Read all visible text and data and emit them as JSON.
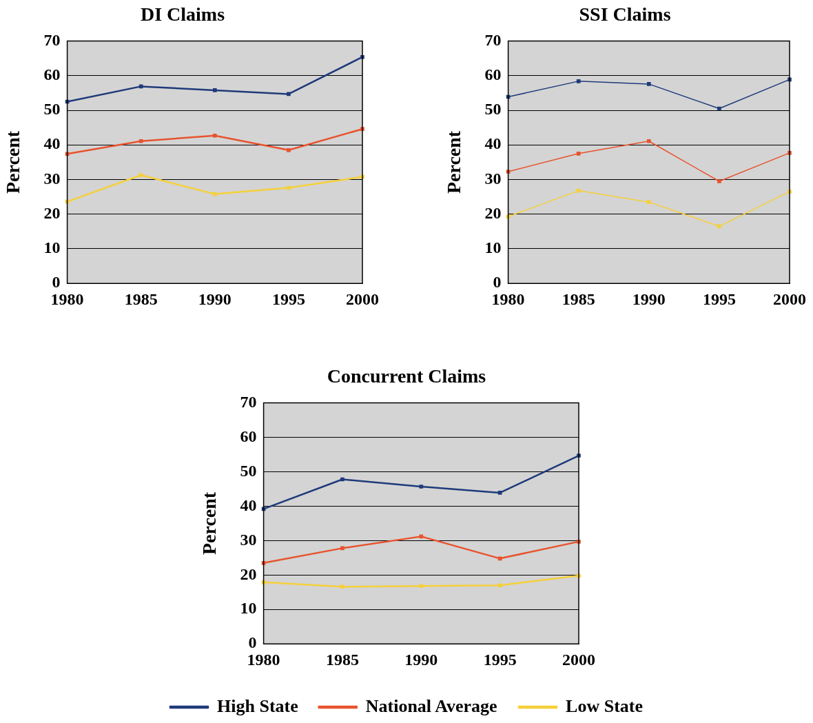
{
  "chart_data": [
    {
      "type": "line",
      "title": "DI Claims",
      "ylabel": "Percent",
      "categories": [
        "1980",
        "1985",
        "1990",
        "1995",
        "2000"
      ],
      "ylim": [
        0,
        70
      ],
      "yticks": [
        0,
        10,
        20,
        30,
        40,
        50,
        60,
        70
      ],
      "grid": "y",
      "marker": "square",
      "line_style": "solid",
      "series": [
        {
          "color": "#1f3a7a",
          "values": [
            52.5,
            56.9,
            55.8,
            54.7,
            65.4
          ]
        },
        {
          "color": "#e8532e",
          "values": [
            37.4,
            41.1,
            42.7,
            38.5,
            44.6
          ]
        },
        {
          "color": "#f5d03a",
          "values": [
            23.6,
            31.3,
            25.8,
            27.6,
            30.8
          ]
        }
      ]
    },
    {
      "type": "line",
      "title": "SSI Claims",
      "ylabel": "Percent",
      "categories": [
        "1980",
        "1985",
        "1990",
        "1995",
        "2000"
      ],
      "ylim": [
        0,
        70
      ],
      "yticks": [
        0,
        10,
        20,
        30,
        40,
        50,
        60,
        70
      ],
      "grid": "y",
      "marker": "square",
      "line_style": "solid",
      "series": [
        {
          "color": "#1f3a7a",
          "values": [
            53.9,
            58.4,
            57.6,
            50.5,
            58.9
          ]
        },
        {
          "color": "#e8532e",
          "values": [
            32.3,
            37.5,
            41.1,
            29.5,
            37.7
          ]
        },
        {
          "color": "#f5d03a",
          "values": [
            19.3,
            26.8,
            23.5,
            16.5,
            26.5
          ]
        }
      ]
    },
    {
      "type": "line",
      "title": "Concurrent Claims",
      "ylabel": "Percent",
      "categories": [
        "1980",
        "1985",
        "1990",
        "1995",
        "2000"
      ],
      "ylim": [
        0,
        70
      ],
      "yticks": [
        0,
        10,
        20,
        30,
        40,
        50,
        60,
        70
      ],
      "grid": "y",
      "marker": "square",
      "line_style": "solid",
      "legend": "bottom",
      "series": [
        {
          "name": "High State",
          "color": "#1f3a7a",
          "values": [
            39.2,
            47.8,
            45.7,
            43.9,
            54.7
          ]
        },
        {
          "name": "National Average",
          "color": "#e8532e",
          "values": [
            23.5,
            27.8,
            31.2,
            24.8,
            29.7
          ]
        },
        {
          "name": "Low State",
          "color": "#f5d03a",
          "values": [
            17.9,
            16.6,
            16.8,
            17.0,
            19.8
          ]
        }
      ]
    }
  ]
}
